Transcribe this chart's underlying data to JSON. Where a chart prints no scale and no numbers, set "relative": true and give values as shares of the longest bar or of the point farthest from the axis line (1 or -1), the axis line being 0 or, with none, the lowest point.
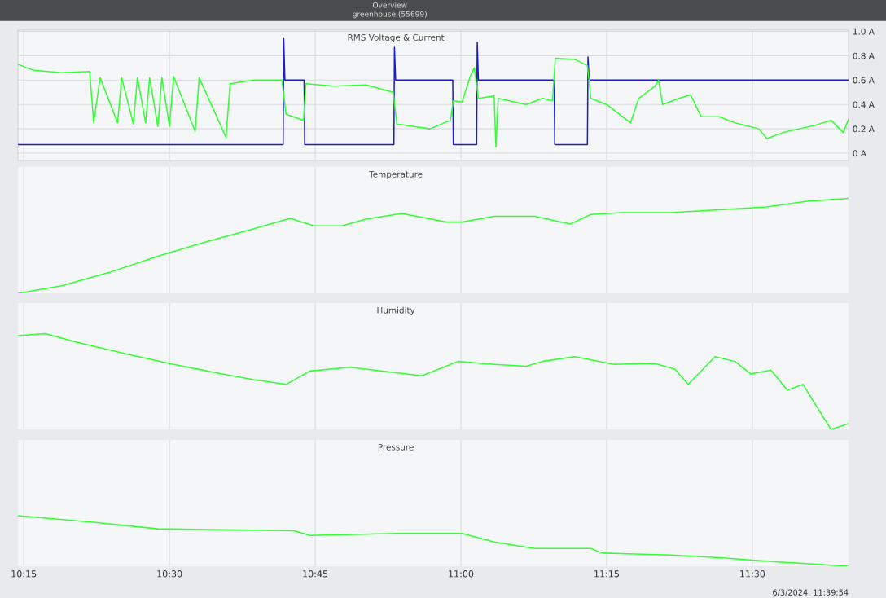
{
  "chart_data": [
    {
      "type": "line",
      "title": "RMS Voltage & Current",
      "annotations": [
        "Overview",
        "greenhouse (55699)"
      ],
      "xlim": [
        10.24,
        11.665
      ],
      "xticks": [
        {
          "value": 10.25,
          "label": null
        },
        {
          "value": 10.5,
          "label": null
        },
        {
          "value": 10.75,
          "label": null
        },
        {
          "value": 11.0,
          "label": null
        },
        {
          "value": 11.25,
          "label": null
        },
        {
          "value": 11.5,
          "label": null
        }
      ],
      "ylim": [
        -0.06,
        1.01
      ],
      "yticks": [
        {
          "value": 0,
          "label": "0 A"
        },
        {
          "value": 0.2,
          "label": "0.2 A"
        },
        {
          "value": 0.4,
          "label": "0.4 A"
        },
        {
          "value": 0.6,
          "label": "0.6 A"
        },
        {
          "value": 0.8,
          "label": "0.8 A"
        },
        {
          "value": 1.0,
          "label": "1.0 A"
        }
      ],
      "tick_labels": "y",
      "grid": true,
      "legend": false,
      "marker": "none",
      "line_style": "solid",
      "series": [
        {
          "color": "#1c1ccc",
          "x": [
            10.24,
            10.695,
            10.696,
            10.698,
            10.731,
            10.732,
            10.885,
            10.886,
            10.888,
            10.986,
            10.987,
            11.027,
            11.028,
            11.03,
            11.16,
            11.161,
            11.217,
            11.218,
            11.22,
            11.665
          ],
          "values": [
            0.07,
            0.07,
            0.94,
            0.6,
            0.6,
            0.07,
            0.07,
            0.87,
            0.6,
            0.6,
            0.07,
            0.07,
            0.91,
            0.6,
            0.6,
            0.07,
            0.07,
            0.79,
            0.6,
            0.6
          ]
        },
        {
          "color": "#33ff33",
          "x": [
            10.24,
            10.267,
            10.315,
            10.363,
            10.37,
            10.381,
            10.411,
            10.418,
            10.438,
            10.445,
            10.459,
            10.466,
            10.48,
            10.487,
            10.5,
            10.507,
            10.544,
            10.551,
            10.597,
            10.604,
            10.645,
            10.693,
            10.7,
            10.73,
            10.734,
            10.782,
            10.837,
            10.884,
            10.89,
            10.947,
            10.982,
            10.987,
            11.002,
            11.016,
            11.023,
            11.03,
            11.057,
            11.06,
            11.064,
            11.112,
            11.14,
            11.157,
            11.162,
            11.195,
            11.217,
            11.223,
            11.25,
            11.291,
            11.305,
            11.333,
            11.339,
            11.346,
            11.374,
            11.394,
            11.412,
            11.443,
            11.47,
            11.511,
            11.525,
            11.553,
            11.58,
            11.608,
            11.635,
            11.656,
            11.665
          ],
          "values": [
            0.73,
            0.68,
            0.66,
            0.67,
            0.25,
            0.62,
            0.25,
            0.62,
            0.24,
            0.62,
            0.25,
            0.62,
            0.22,
            0.62,
            0.22,
            0.63,
            0.18,
            0.62,
            0.13,
            0.57,
            0.6,
            0.6,
            0.32,
            0.27,
            0.57,
            0.55,
            0.56,
            0.5,
            0.24,
            0.2,
            0.27,
            0.43,
            0.42,
            0.63,
            0.7,
            0.45,
            0.47,
            0.05,
            0.45,
            0.4,
            0.45,
            0.43,
            0.78,
            0.77,
            0.72,
            0.45,
            0.4,
            0.25,
            0.45,
            0.55,
            0.6,
            0.4,
            0.45,
            0.48,
            0.3,
            0.3,
            0.25,
            0.2,
            0.12,
            0.17,
            0.2,
            0.23,
            0.27,
            0.17,
            0.28
          ]
        }
      ]
    },
    {
      "type": "line",
      "title": "Temperature",
      "relative": true,
      "xlim": [
        10.24,
        11.665
      ],
      "xticks": [
        {
          "value": 10.25,
          "label": null
        },
        {
          "value": 10.5,
          "label": null
        },
        {
          "value": 10.75,
          "label": null
        },
        {
          "value": 11.0,
          "label": null
        },
        {
          "value": 11.25,
          "label": null
        },
        {
          "value": 11.5,
          "label": null
        }
      ],
      "tick_labels": false,
      "grid": "x",
      "legend": false,
      "marker": "none",
      "line_style": "solid",
      "series": [
        {
          "color": "#33ff33",
          "x": [
            10.24,
            10.315,
            10.397,
            10.48,
            10.562,
            10.645,
            10.707,
            10.748,
            10.796,
            10.837,
            10.899,
            10.975,
            11.002,
            11.057,
            11.126,
            11.188,
            11.223,
            11.278,
            11.36,
            11.443,
            11.525,
            11.594,
            11.665
          ],
          "values": [
            0,
            0.08,
            0.22,
            0.39,
            0.54,
            0.68,
            0.79,
            0.71,
            0.71,
            0.78,
            0.84,
            0.75,
            0.75,
            0.81,
            0.81,
            0.73,
            0.83,
            0.85,
            0.85,
            0.88,
            0.91,
            0.97,
            1
          ]
        }
      ]
    },
    {
      "type": "line",
      "title": "Humidity",
      "relative": true,
      "xlim": [
        10.24,
        11.665
      ],
      "xticks": [
        {
          "value": 10.25,
          "label": null
        },
        {
          "value": 10.5,
          "label": null
        },
        {
          "value": 10.75,
          "label": null
        },
        {
          "value": 11.0,
          "label": null
        },
        {
          "value": 11.25,
          "label": null
        },
        {
          "value": 11.5,
          "label": null
        }
      ],
      "tick_labels": false,
      "grid": "x",
      "legend": false,
      "marker": "none",
      "line_style": "solid",
      "series": [
        {
          "color": "#33ff33",
          "x": [
            10.24,
            10.287,
            10.342,
            10.425,
            10.507,
            10.59,
            10.645,
            10.7,
            10.741,
            10.81,
            10.892,
            10.933,
            10.995,
            11.057,
            11.112,
            11.14,
            11.195,
            11.263,
            11.332,
            11.367,
            11.39,
            11.436,
            11.47,
            11.497,
            11.532,
            11.56,
            11.587,
            11.608,
            11.635,
            11.665
          ],
          "values": [
            0.98,
            1,
            0.91,
            0.79,
            0.68,
            0.58,
            0.52,
            0.47,
            0.61,
            0.65,
            0.59,
            0.56,
            0.71,
            0.68,
            0.66,
            0.71,
            0.76,
            0.68,
            0.69,
            0.63,
            0.47,
            0.76,
            0.71,
            0.58,
            0.62,
            0.41,
            0.47,
            0.26,
            0,
            0.06
          ]
        }
      ]
    },
    {
      "type": "line",
      "title": "Pressure",
      "relative": true,
      "annotations": [
        "6/3/2024, 11:39:54"
      ],
      "xlim": [
        10.24,
        11.665
      ],
      "xticks": [
        {
          "value": 10.25,
          "label": "10:15"
        },
        {
          "value": 10.5,
          "label": "10:30"
        },
        {
          "value": 10.75,
          "label": "10:45"
        },
        {
          "value": 11.0,
          "label": "11:00"
        },
        {
          "value": 11.25,
          "label": "11:15"
        },
        {
          "value": 11.5,
          "label": "11:30"
        }
      ],
      "tick_labels": "x",
      "grid": "x",
      "legend": false,
      "marker": "none",
      "line_style": "solid",
      "series": [
        {
          "color": "#33ff33",
          "x": [
            10.24,
            10.369,
            10.48,
            10.714,
            10.741,
            10.892,
            11.002,
            11.057,
            11.126,
            11.223,
            11.243,
            11.36,
            11.443,
            11.539,
            11.665
          ],
          "values": [
            1,
            0.87,
            0.74,
            0.7,
            0.61,
            0.65,
            0.65,
            0.48,
            0.35,
            0.35,
            0.26,
            0.22,
            0.17,
            0.09,
            0
          ]
        }
      ]
    }
  ]
}
